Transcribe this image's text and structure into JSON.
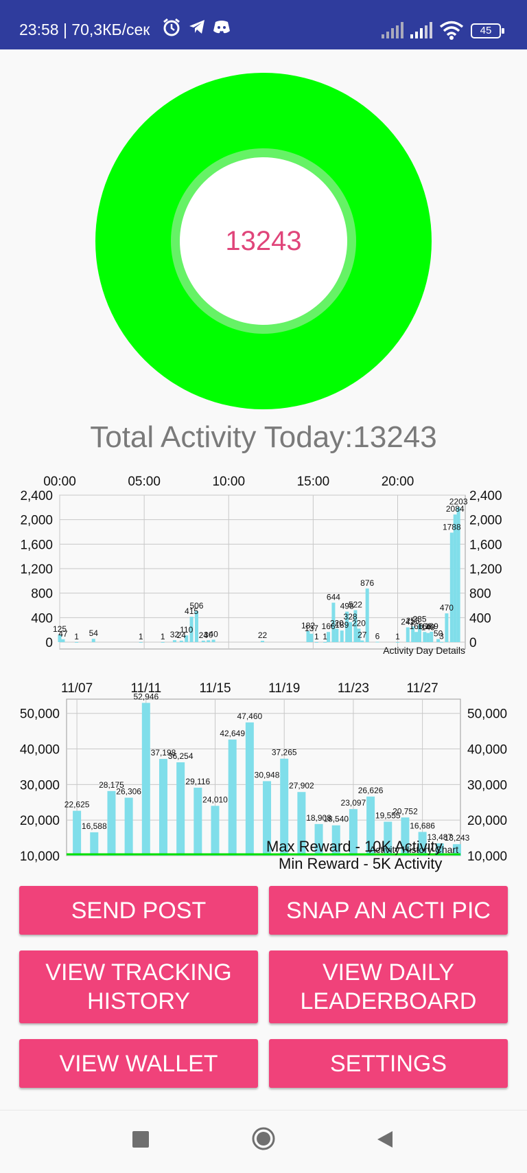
{
  "status_bar": {
    "time": "23:58 | 70,3КБ/сек",
    "battery": "45",
    "icons": [
      "alarm-icon",
      "telegram-icon",
      "discord-icon",
      "signal-icon",
      "signal-icon",
      "wifi-icon",
      "battery-icon"
    ]
  },
  "ring": {
    "value": "13243",
    "color": "#00ff00"
  },
  "total_label": "Total Activity Today:13243",
  "day_chart": {
    "type": "bar",
    "x_ticks": [
      "00:00",
      "05:00",
      "10:00",
      "15:00",
      "20:00"
    ],
    "y_ticks": [
      "2,400",
      "2,000",
      "1,600",
      "1,200",
      "800",
      "400",
      "0"
    ],
    "ylim": [
      0,
      2400
    ],
    "description_label": "Activity Day Details",
    "color": "#80deea",
    "points": [
      {
        "t": 0.0,
        "v": 125,
        "label": "125"
      },
      {
        "t": 0.2,
        "v": 47,
        "label": "47"
      },
      {
        "t": 1.0,
        "v": 1,
        "label": "1"
      },
      {
        "t": 2.0,
        "v": 54,
        "label": "54"
      },
      {
        "t": 4.8,
        "v": 1,
        "label": "1"
      },
      {
        "t": 6.1,
        "v": 1,
        "label": "1"
      },
      {
        "t": 6.8,
        "v": 32,
        "label": "32"
      },
      {
        "t": 7.2,
        "v": 24,
        "label": "24"
      },
      {
        "t": 7.5,
        "v": 110,
        "label": "110"
      },
      {
        "t": 7.8,
        "v": 415,
        "label": "415"
      },
      {
        "t": 8.1,
        "v": 506,
        "label": "506"
      },
      {
        "t": 8.5,
        "v": 24,
        "label": "24"
      },
      {
        "t": 8.8,
        "v": 30,
        "label": "30"
      },
      {
        "t": 9.1,
        "v": 40,
        "label": "40"
      },
      {
        "t": 12.0,
        "v": 22,
        "label": "22"
      },
      {
        "t": 14.7,
        "v": 182,
        "label": "182"
      },
      {
        "t": 14.9,
        "v": 137,
        "label": "137"
      },
      {
        "t": 15.2,
        "v": 1,
        "label": "1"
      },
      {
        "t": 15.7,
        "v": 1,
        "label": "1"
      },
      {
        "t": 15.9,
        "v": 166,
        "label": "166"
      },
      {
        "t": 16.2,
        "v": 644,
        "label": "644"
      },
      {
        "t": 16.4,
        "v": 220,
        "label": "220"
      },
      {
        "t": 16.7,
        "v": 189,
        "label": "189"
      },
      {
        "t": 17.0,
        "v": 498,
        "label": "498"
      },
      {
        "t": 17.2,
        "v": 328,
        "label": "328"
      },
      {
        "t": 17.5,
        "v": 522,
        "label": "522"
      },
      {
        "t": 17.7,
        "v": 220,
        "label": "220"
      },
      {
        "t": 17.9,
        "v": 27,
        "label": "27"
      },
      {
        "t": 18.2,
        "v": 876,
        "label": "876"
      },
      {
        "t": 18.8,
        "v": 6,
        "label": "6"
      },
      {
        "t": 20.0,
        "v": 1,
        "label": "1"
      },
      {
        "t": 20.6,
        "v": 241,
        "label": "241"
      },
      {
        "t": 20.9,
        "v": 256,
        "label": "256"
      },
      {
        "t": 21.1,
        "v": 166,
        "label": "166"
      },
      {
        "t": 21.3,
        "v": 285,
        "label": "285"
      },
      {
        "t": 21.6,
        "v": 166,
        "label": "166"
      },
      {
        "t": 21.8,
        "v": 149,
        "label": "149"
      },
      {
        "t": 22.0,
        "v": 169,
        "label": "169"
      },
      {
        "t": 22.4,
        "v": 50,
        "label": "50"
      },
      {
        "t": 22.6,
        "v": 3,
        "label": "3"
      },
      {
        "t": 22.9,
        "v": 470,
        "label": "470"
      },
      {
        "t": 23.2,
        "v": 1788,
        "label": "1788"
      },
      {
        "t": 23.4,
        "v": 2084,
        "label": "2084"
      },
      {
        "t": 23.6,
        "v": 2203,
        "label": "2203"
      }
    ]
  },
  "history_chart": {
    "type": "bar",
    "x_ticks": [
      "11/07",
      "11/11",
      "11/15",
      "11/19",
      "11/23",
      "11/27"
    ],
    "y_ticks": [
      "50,000",
      "40,000",
      "30,000",
      "20,000",
      "10,000"
    ],
    "ylim": [
      10000,
      54000
    ],
    "description_label": "Activity History Chart",
    "max_line_label": "Max Reward - 10K Activity",
    "min_line_label": "Min Reward - 5K Activity",
    "line_color": "#00e000",
    "color": "#80deea",
    "values": [
      22625,
      16588,
      28175,
      26306,
      52946,
      37198,
      36254,
      29116,
      24010,
      42649,
      47460,
      30948,
      37265,
      27902,
      18908,
      18540,
      23097,
      26626,
      19555,
      20752,
      16686,
      13487,
      13243
    ],
    "labels": [
      "22,625",
      "16,588",
      "28,175",
      "26,306",
      "52,946",
      "37,198",
      "36,254",
      "29,116",
      "24,010",
      "42,649",
      "47,460",
      "30,948",
      "37,265",
      "27,902",
      "18,908",
      "18,540",
      "23,097",
      "26,626",
      "19,555",
      "20,752",
      "16,686",
      "13,487",
      "13,243"
    ]
  },
  "buttons": {
    "send_post": "SEND POST",
    "snap_pic": "SNAP AN ACTI PIC",
    "tracking_history": "VIEW TRACKING\nHISTORY",
    "daily_leaderboard": "VIEW DAILY\nLEADERBOARD",
    "wallet": "VIEW WALLET",
    "settings": "SETTINGS"
  },
  "nav_bar": {
    "icons": [
      "recents-square-icon",
      "home-circle-icon",
      "back-triangle-icon"
    ]
  }
}
